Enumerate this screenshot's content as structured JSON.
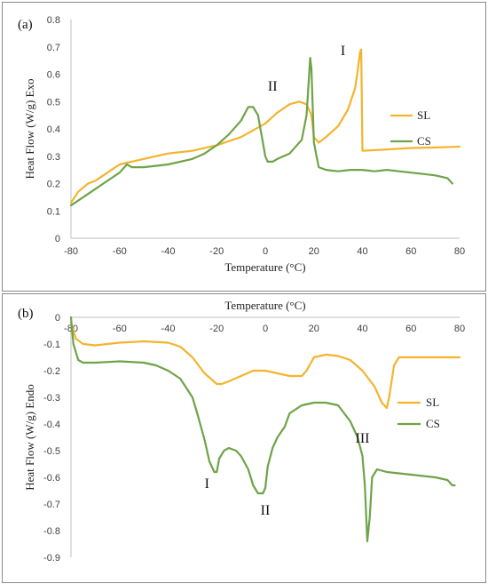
{
  "colors": {
    "SL": "#f3b42d",
    "CS": "#6ea348",
    "axis": "#bfbfbf"
  },
  "chart_data": [
    {
      "panel_label": "(a)",
      "type": "line",
      "xlabel": "Temperature (°C)",
      "ylabel": "Heat Flow (W/g) Exo",
      "xlim": [
        -80,
        80
      ],
      "ylim": [
        0,
        0.8
      ],
      "x_ticks": [
        "-80",
        "-60",
        "-40",
        "-20",
        "0",
        "20",
        "40",
        "60",
        "80"
      ],
      "y_ticks": [
        "0",
        "0.1",
        "0.2",
        "0.3",
        "0.4",
        "0.5",
        "0.6",
        "0.7",
        "0.8"
      ],
      "legend": [
        "SL",
        "CS"
      ],
      "legend_position": "right",
      "annotations": [
        {
          "text": "I",
          "x": 32,
          "y": 0.67
        },
        {
          "text": "II",
          "x": 3,
          "y": 0.54
        }
      ],
      "series": [
        {
          "name": "SL",
          "x": [
            -80,
            -77,
            -73,
            -70,
            -65,
            -60,
            -50,
            -40,
            -30,
            -20,
            -10,
            0,
            5,
            10,
            14,
            17,
            19,
            20,
            22,
            25,
            30,
            34,
            37,
            38,
            39,
            39.5,
            40,
            50,
            60,
            70,
            80
          ],
          "y": [
            0.13,
            0.17,
            0.2,
            0.21,
            0.24,
            0.27,
            0.29,
            0.31,
            0.32,
            0.34,
            0.37,
            0.42,
            0.46,
            0.49,
            0.5,
            0.49,
            0.45,
            0.37,
            0.35,
            0.37,
            0.41,
            0.47,
            0.55,
            0.61,
            0.68,
            0.69,
            0.32,
            0.325,
            0.33,
            0.332,
            0.335
          ]
        },
        {
          "name": "CS",
          "x": [
            -80,
            -75,
            -70,
            -65,
            -60,
            -57,
            -55,
            -50,
            -40,
            -30,
            -25,
            -20,
            -15,
            -10,
            -7,
            -5,
            -3,
            -1,
            0,
            1,
            3,
            5,
            10,
            15,
            17,
            18.5,
            19,
            20,
            22,
            25,
            30,
            35,
            40,
            45,
            50,
            55,
            60,
            65,
            70,
            75,
            77
          ],
          "y": [
            0.12,
            0.15,
            0.18,
            0.21,
            0.24,
            0.27,
            0.26,
            0.26,
            0.27,
            0.29,
            0.31,
            0.34,
            0.38,
            0.43,
            0.48,
            0.48,
            0.45,
            0.35,
            0.3,
            0.28,
            0.28,
            0.29,
            0.31,
            0.36,
            0.45,
            0.66,
            0.62,
            0.35,
            0.26,
            0.25,
            0.245,
            0.25,
            0.25,
            0.245,
            0.25,
            0.245,
            0.24,
            0.235,
            0.23,
            0.22,
            0.2
          ]
        }
      ]
    },
    {
      "panel_label": "(b)",
      "type": "line",
      "xlabel": "Temperature (°C)",
      "ylabel": "Heat Flow (W/g) Endo",
      "xlim": [
        -80,
        80
      ],
      "ylim": [
        -0.9,
        0
      ],
      "x_ticks": [
        "-80",
        "-60",
        "-40",
        "-20",
        "0",
        "20",
        "40",
        "60",
        "80"
      ],
      "y_ticks": [
        "0",
        "-0.1",
        "-0.2",
        "-0.3",
        "-0.4",
        "-0.5",
        "-0.6",
        "-0.7",
        "-0.8",
        "-0.9"
      ],
      "legend": [
        "SL",
        "CS"
      ],
      "legend_position": "right",
      "annotations": [
        {
          "text": "I",
          "x": -24,
          "y": -0.64
        },
        {
          "text": "II",
          "x": 0,
          "y": -0.74
        },
        {
          "text": "III",
          "x": 40,
          "y": -0.47
        }
      ],
      "series": [
        {
          "name": "SL",
          "x": [
            -80,
            -78,
            -75,
            -70,
            -60,
            -50,
            -40,
            -35,
            -30,
            -25,
            -20,
            -18,
            -15,
            -10,
            -5,
            0,
            5,
            10,
            15,
            17,
            20,
            25,
            30,
            35,
            40,
            45,
            48,
            50,
            51,
            53,
            55,
            60,
            70,
            80
          ],
          "y": [
            -0.02,
            -0.08,
            -0.1,
            -0.105,
            -0.095,
            -0.09,
            -0.095,
            -0.11,
            -0.15,
            -0.21,
            -0.25,
            -0.25,
            -0.24,
            -0.22,
            -0.2,
            -0.2,
            -0.21,
            -0.22,
            -0.22,
            -0.2,
            -0.15,
            -0.14,
            -0.145,
            -0.16,
            -0.2,
            -0.26,
            -0.32,
            -0.34,
            -0.3,
            -0.18,
            -0.15,
            -0.15,
            -0.15,
            -0.15
          ]
        },
        {
          "name": "CS",
          "x": [
            -80,
            -79,
            -77,
            -75,
            -70,
            -60,
            -50,
            -45,
            -40,
            -35,
            -30,
            -28,
            -25,
            -23,
            -21,
            -20,
            -19,
            -17,
            -15,
            -12,
            -10,
            -7,
            -5,
            -3,
            -1,
            0,
            1,
            3,
            5,
            8,
            10,
            15,
            20,
            25,
            30,
            35,
            38,
            40,
            41,
            42,
            43,
            44,
            46,
            50,
            60,
            70,
            75,
            77,
            78
          ],
          "y": [
            0,
            -0.1,
            -0.16,
            -0.17,
            -0.17,
            -0.165,
            -0.17,
            -0.18,
            -0.2,
            -0.23,
            -0.3,
            -0.36,
            -0.46,
            -0.54,
            -0.58,
            -0.58,
            -0.53,
            -0.5,
            -0.49,
            -0.5,
            -0.52,
            -0.57,
            -0.63,
            -0.66,
            -0.66,
            -0.64,
            -0.56,
            -0.49,
            -0.45,
            -0.41,
            -0.36,
            -0.33,
            -0.32,
            -0.32,
            -0.33,
            -0.39,
            -0.45,
            -0.52,
            -0.63,
            -0.84,
            -0.75,
            -0.6,
            -0.57,
            -0.58,
            -0.59,
            -0.6,
            -0.61,
            -0.63,
            -0.63
          ]
        }
      ]
    }
  ]
}
